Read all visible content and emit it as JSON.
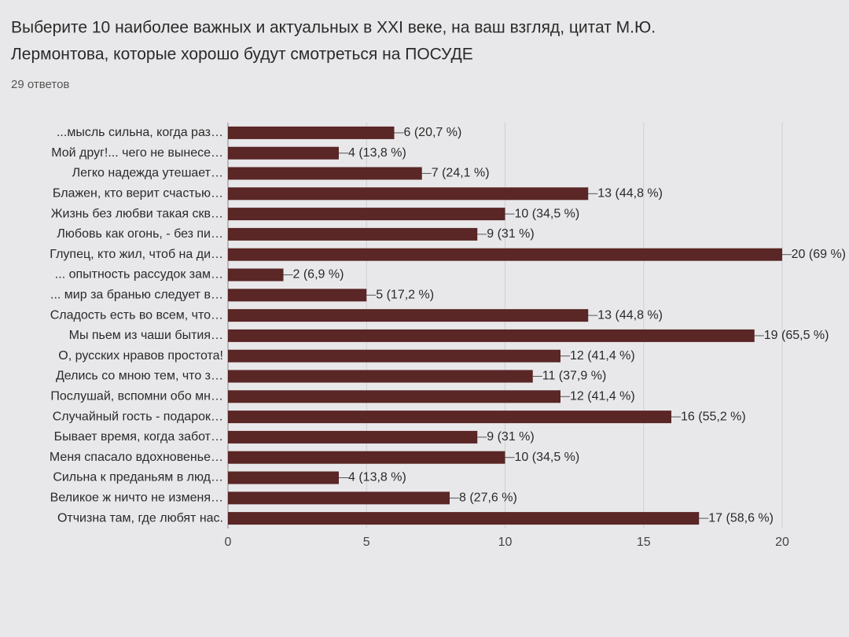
{
  "chart_data": {
    "type": "bar",
    "orientation": "horizontal",
    "title": [
      "Выберите 10 наиболее важных и актуальных в XXI веке, на ваш взгляд, цитат М.Ю.",
      "Лермонтова, которые хорошо будут смотреться на ПОСУДЕ"
    ],
    "subtitle": "29 ответов",
    "categories": [
      "...мысль сильна, когда раз…",
      "Мой друг!... чего не вынесе…",
      "Легко надежда утешает…",
      "Блажен, кто верит счастью…",
      "Жизнь без любви такая скв…",
      "Любовь как огонь, - без пи…",
      "Глупец, кто жил, чтоб на ди…",
      "... опытность рассудок зам…",
      "... мир за бранью следует в…",
      "Сладость есть во всем, что…",
      "Мы пьем из чаши бытия…",
      "О, русских нравов простота!",
      "Делись со мною тем, что з…",
      "Послушай, вспомни обо мн…",
      "Случайный гость - подарок…",
      "Бывает время, когда забот…",
      "Меня спасало вдохновенье…",
      "Сильна к преданьям в люд…",
      "Великое ж ничто не изменя…",
      "Отчизна там, где любят нас."
    ],
    "values": [
      6,
      4,
      7,
      13,
      10,
      9,
      20,
      2,
      5,
      13,
      19,
      12,
      11,
      12,
      16,
      9,
      10,
      4,
      8,
      17
    ],
    "value_labels": [
      "6 (20,7 %)",
      "4 (13,8 %)",
      "7 (24,1 %)",
      "13 (44,8 %)",
      "10 (34,5 %)",
      "9 (31 %)",
      "20 (69 %)",
      "2 (6,9 %)",
      "5 (17,2 %)",
      "13 (44,8 %)",
      "19 (65,5 %)",
      "12 (41,4 %)",
      "11 (37,9 %)",
      "12 (41,4 %)",
      "16 (55,2 %)",
      "9 (31 %)",
      "10 (34,5 %)",
      "4 (13,8 %)",
      "8 (27,6 %)",
      "17 (58,6 %)"
    ],
    "color": "#5a2626",
    "xlim": [
      0,
      20
    ],
    "xticks": [
      0,
      5,
      10,
      15,
      20
    ],
    "grid": true
  }
}
